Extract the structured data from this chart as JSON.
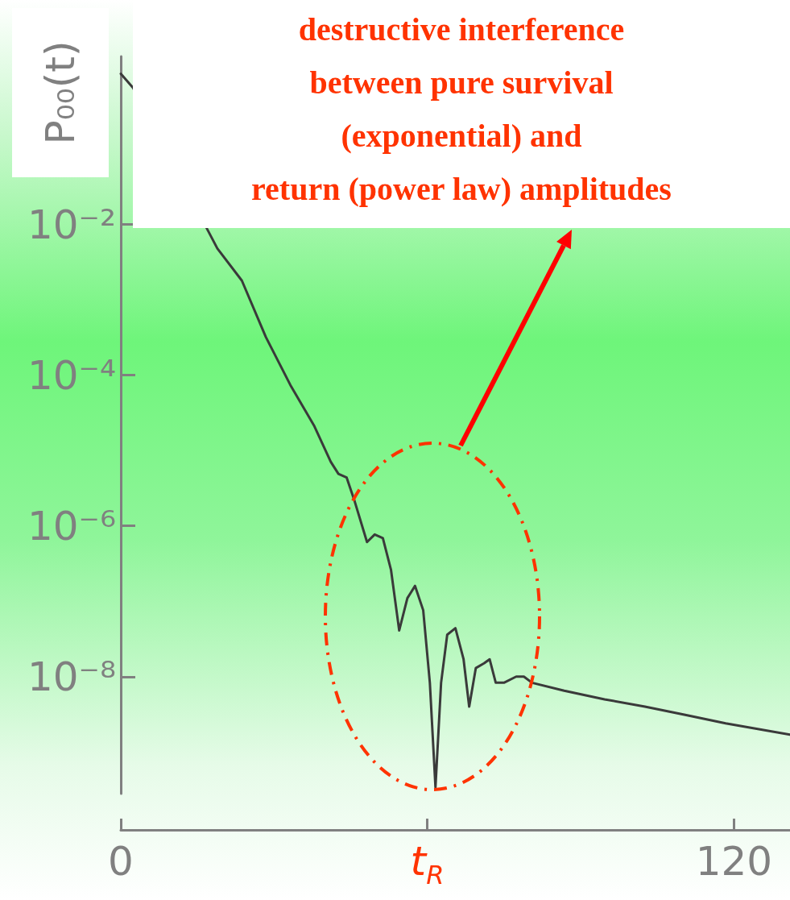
{
  "chart_data": {
    "type": "line",
    "ylabel": "P₀₀(t)",
    "log": "y",
    "grid": false,
    "marker": "none",
    "line_style": "solid",
    "xlim": [
      0,
      131
    ],
    "xticks": [
      0,
      {
        "value": 60,
        "label": "t$_{R}$"
      },
      120
    ],
    "ylim": [
      2.8e-10,
      1.7
    ],
    "yticks": [
      {
        "value": 0.01,
        "label": "10⁻²"
      },
      {
        "value": 0.0001,
        "label": "10⁻⁴"
      },
      {
        "value": 1e-06,
        "label": "10⁻⁶"
      },
      {
        "value": 1e-08,
        "label": "10⁻⁸"
      }
    ],
    "annotations": [
      "destructive interference\nbetween pure survival\n(exponential) and\nreturn (power law) amplitudes"
    ],
    "series": [
      {
        "color": "#3a3a3a",
        "x": [
          0,
          2.4,
          7.9,
          14.2,
          18.9,
          23.7,
          28.4,
          33.2,
          37.9,
          41.1,
          42.6,
          44.2,
          45.8,
          48.2,
          49.7,
          51.3,
          52.9,
          54.5,
          56.1,
          57.6,
          59.2,
          60.5,
          61.6,
          62.7,
          63.9,
          65.5,
          67.1,
          68.2,
          69.5,
          71.1,
          72.2,
          73.4,
          75.0,
          77.4,
          78.9,
          80.5,
          86.8,
          94.7,
          102.6,
          110.5,
          118.4,
          131
        ],
        "values": [
          1,
          0.65,
          null,
          null,
          0.0048,
          0.0018,
          0.00032,
          7.4e-05,
          2.1e-05,
          7.1e-06,
          4.9e-06,
          4.4e-06,
          2.1e-06,
          6.1e-07,
          7.7e-07,
          6.9e-07,
          2.6e-07,
          4.1e-08,
          1.1e-07,
          1.6e-07,
          7.6e-08,
          8.3e-09,
          3.4e-10,
          8.3e-09,
          3.6e-08,
          4.4e-08,
          1.7e-08,
          4e-09,
          1.3e-08,
          1.5e-08,
          1.7e-08,
          8.3e-09,
          8.3e-09,
          1e-08,
          1e-08,
          8.3e-09,
          6.5e-09,
          5e-09,
          4e-09,
          3.1e-09,
          2.4e-09,
          1.7e-09
        ]
      }
    ]
  }
}
